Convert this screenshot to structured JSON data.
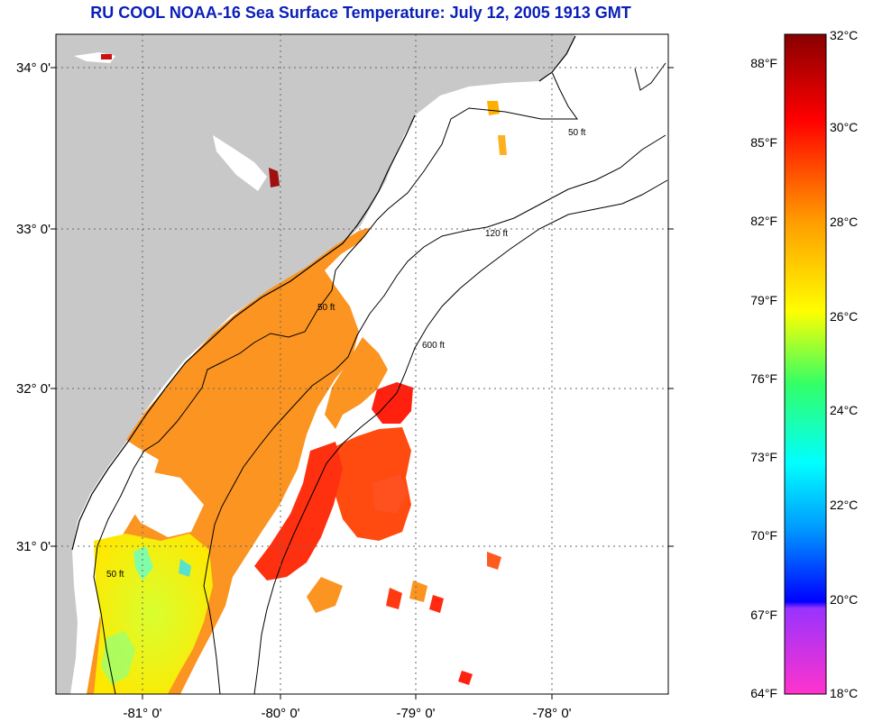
{
  "title": "RU COOL  NOAA-16  Sea Surface Temperature:  July 12, 2005 1913 GMT",
  "axes": {
    "longitude_labels": [
      "-81° 0'",
      "-80° 0'",
      "-79° 0'",
      "-78° 0'"
    ],
    "latitude_labels": [
      "34° 0'",
      "33° 0'",
      "32° 0'",
      "31° 0'"
    ]
  },
  "contour_labels": [
    "50 ft",
    "120 ft",
    "600 ft"
  ],
  "colorbar": {
    "celsius_labels": [
      "32°C",
      "30°C",
      "28°C",
      "26°C",
      "24°C",
      "22°C",
      "20°C",
      "18°C"
    ],
    "fahrenheit_labels": [
      "88°F",
      "85°F",
      "82°F",
      "79°F",
      "76°F",
      "73°F",
      "70°F",
      "67°F",
      "64°F"
    ],
    "colors": [
      "#ff33cc",
      "#cc33ff",
      "#8020c0",
      "#0000ff",
      "#0066ff",
      "#00ccff",
      "#00ffff",
      "#33ff99",
      "#99ff33",
      "#ffff00",
      "#ffcc00",
      "#ff9900",
      "#ff6600",
      "#ff2200",
      "#ff0000",
      "#cc0000",
      "#990000"
    ]
  },
  "colors": {
    "land": "#c8c8c8",
    "ocean_nodata": "#ffffff",
    "title": "#0a1fb8"
  }
}
